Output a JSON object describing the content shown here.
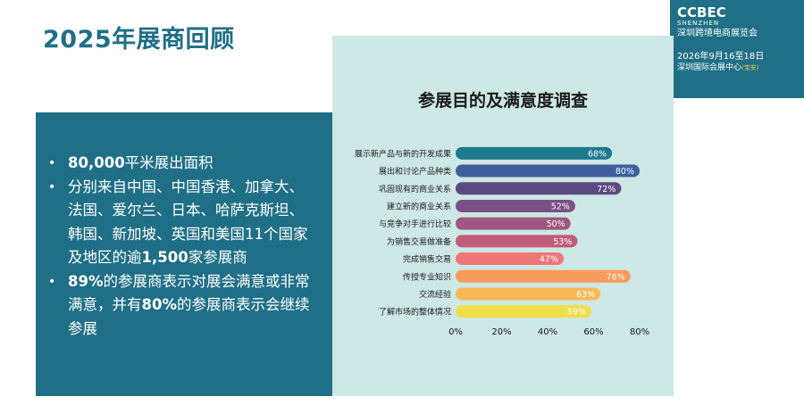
{
  "header": {
    "title": "2025年展商回顾"
  },
  "brand": {
    "name": "CCBEC",
    "city": "SHENZHEN",
    "event": "深圳跨境电商展览会",
    "date": "2026年9月16至18日",
    "venue": "深圳国际会展中心",
    "venue_note": "(宝安)",
    "color": "#1f6f86"
  },
  "bullets": [
    {
      "bold": "80,000",
      "text": "平米展出面积"
    },
    {
      "bold": "",
      "text": "分别来自中国、中国香港、加拿大、法国、爱尔兰、日本、哈萨克斯坦、韩国、新加坡、英国和美国11个国家及地区的逾",
      "bold2": "1,500",
      "text2": "家参展商"
    },
    {
      "bold": "89%",
      "text": "的参展商表示对展会满意或非常满意，并有",
      "bold2": "80%",
      "text2": "的参展商表示会继续参展"
    }
  ],
  "chart_data": {
    "type": "bar",
    "orientation": "horizontal",
    "title": "参展目的及满意度调查",
    "categories": [
      "展示新产品与新的开发成果",
      "展出和讨论产品种类",
      "巩固现有的商业关系",
      "建立新的商业关系",
      "与竞争对手进行比较",
      "为销售交易做准备",
      "完成销售交易",
      "传授专业知识",
      "交流经验",
      "了解市场的整体情况"
    ],
    "values": [
      68,
      80,
      72,
      52,
      50,
      53,
      47,
      76,
      63,
      59
    ],
    "value_labels": [
      "68%",
      "80%",
      "72%",
      "52%",
      "50%",
      "53%",
      "47%",
      "76%",
      "63%",
      "59%"
    ],
    "colors": [
      "#1d7a8c",
      "#3e5f9b",
      "#5a4a82",
      "#7a4f86",
      "#a0577f",
      "#c25c7d",
      "#ef7679",
      "#f79a5a",
      "#f6b956",
      "#efde4a"
    ],
    "xticks": [
      "0%",
      "20%",
      "40%",
      "60%",
      "80%"
    ],
    "xlim": [
      0,
      80
    ],
    "grid": false,
    "legend": "none"
  }
}
